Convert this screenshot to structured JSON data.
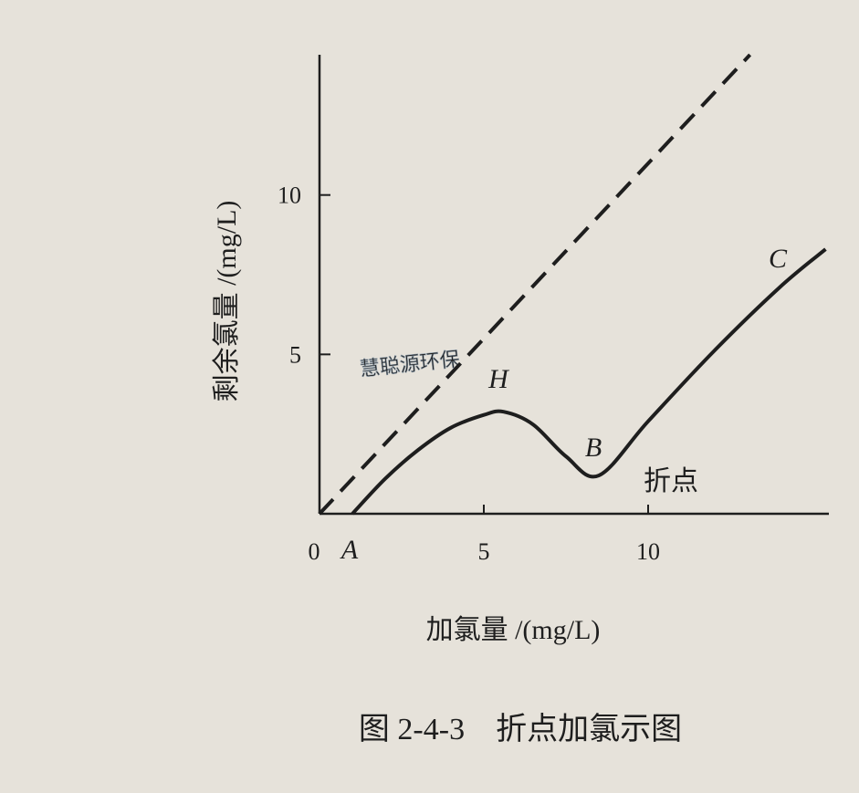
{
  "chart_data": {
    "type": "line",
    "title": "图 2-4-3　折点加氯示图",
    "x_label": "加氯量 /(mg/L)",
    "y_label": "剩余氯量 /(mg/L)",
    "annotations": [
      "A",
      "H",
      "B",
      "C",
      "折点"
    ],
    "watermark": "慧聪源环保",
    "xlim": [
      0,
      15.5
    ],
    "ylim": [
      0,
      14.4
    ],
    "xticks": [
      0,
      5,
      10
    ],
    "yticks": [
      5,
      10
    ],
    "series": [
      {
        "style": "dashed",
        "color": "#1e1e1e",
        "x": [
          0,
          13.1
        ],
        "values": [
          0,
          14.4
        ]
      },
      {
        "style": "solid",
        "color": "#1e1e1e",
        "x": [
          1,
          2,
          3,
          4,
          5,
          5.6,
          6.5,
          7.5,
          8.5,
          10,
          12,
          14,
          15.4
        ],
        "values": [
          0,
          1.1,
          2.0,
          2.7,
          3.1,
          3.2,
          2.8,
          1.8,
          1.2,
          2.9,
          5.1,
          7.1,
          8.3
        ]
      }
    ]
  }
}
